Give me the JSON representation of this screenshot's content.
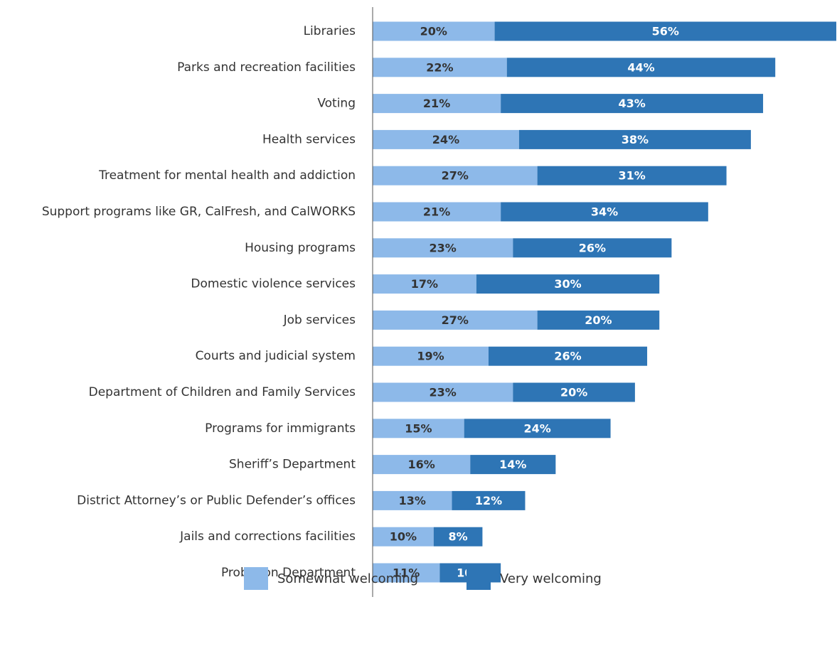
{
  "chart_data": {
    "type": "stacked-bar-horizontal",
    "categories": [
      "Libraries",
      "Parks and recreation facilities",
      "Voting",
      "Health services",
      "Treatment for mental health and addiction",
      "Support programs like GR, CalFresh, and CalWORKS",
      "Housing programs",
      "Domestic violence services",
      "Job services",
      "Courts and judicial system",
      "Department of Children and Family Services",
      "Programs for immigrants",
      "Sheriff’s Department",
      "District Attorney’s or Public Defender’s offices",
      "Jails and corrections facilities",
      "Probation Department"
    ],
    "series": [
      {
        "name": "Somewhat welcoming",
        "color": "#8db9e9",
        "values": [
          20,
          22,
          21,
          24,
          27,
          21,
          23,
          17,
          27,
          19,
          23,
          15,
          16,
          13,
          10,
          11
        ],
        "value_labels": [
          "20%",
          "22%",
          "21%",
          "24%",
          "27%",
          "21%",
          "23%",
          "17%",
          "27%",
          "19%",
          "23%",
          "15%",
          "16%",
          "13%",
          "10%",
          "11%"
        ]
      },
      {
        "name": "Very welcoming",
        "color": "#2e75b5",
        "values": [
          56,
          44,
          43,
          38,
          31,
          34,
          26,
          30,
          20,
          26,
          20,
          24,
          14,
          12,
          8,
          10
        ],
        "value_labels": [
          "56%",
          "44%",
          "43%",
          "38%",
          "31%",
          "34%",
          "26%",
          "30%",
          "20%",
          "26%",
          "20%",
          "24%",
          "14%",
          "12%",
          "8%",
          "10%"
        ]
      }
    ],
    "legend": "bottom"
  }
}
